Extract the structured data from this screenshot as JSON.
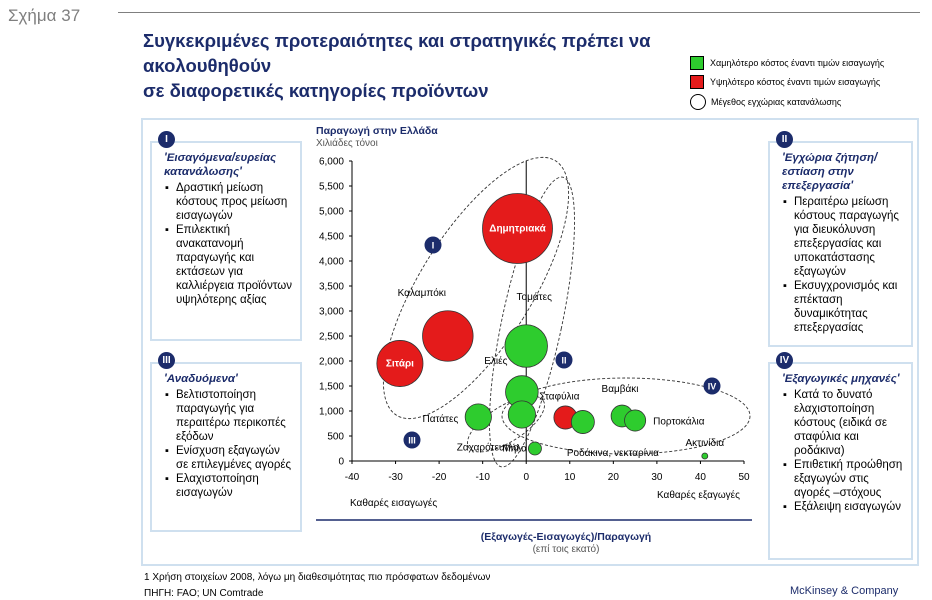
{
  "figure_label": "Σχήμα 37",
  "title_line1": "Συγκεκριμένες προτεραιότητες και στρατηγικές πρέπει να ακολουθηθούν",
  "title_line2": "σε διαφορετικές κατηγορίες προϊόντων",
  "legend": {
    "lower_cost": "Χαμηλότερο κόστος έναντι τιμών εισαγωγής",
    "higher_cost": "Υψηλότερο κόστος έναντι τιμών εισαγωγής",
    "size": "Μέγεθος εγχώριας κατανάλωσης"
  },
  "colors": {
    "green": "#2ecc2e",
    "red": "#e41b1b",
    "navy": "#1c2c6b",
    "frame": "#cfe0ef"
  },
  "panels": {
    "p1": {
      "badge": "I",
      "title": "'Εισαγόμενα/ευρείας κατανάλωσης'",
      "bullets": [
        "Δραστική μείωση κόστους προς μείωση εισαγωγών",
        "Επιλεκτική ανακατανομή παραγωγής και εκτάσεων για καλλιέργεια προϊόντων υψηλότερης αξίας"
      ]
    },
    "p2": {
      "badge": "II",
      "title": "'Εγχώρια ζήτηση/ εστίαση στην επεξεργασία'",
      "bullets": [
        "Περαιτέρω μείωση κόστους παραγωγής για διευκόλυνση επεξεργασίας και υποκατάστασης εξαγωγών",
        "Εκσυγχρονισμός και επέκταση δυναμικότητας επεξεργασίας"
      ]
    },
    "p3": {
      "badge": "III",
      "title": "'Αναδυόμενα'",
      "bullets": [
        "Βελτιστοποίηση παραγωγής για περαιτέρω περικοπές εξόδων",
        "Ενίσχυση εξαγωγών σε επιλεγμένες αγορές",
        "Ελαχιστοποίηση εισαγωγών"
      ]
    },
    "p4": {
      "badge": "IV",
      "title": "'Εξαγωγικές μηχανές'",
      "bullets": [
        "Κατά το δυνατό ελαχιστοποίηση κόστους (ειδικά σε σταφύλια και ροδάκινα)",
        "Επιθετική προώθηση εξαγωγών στις αγορές –στόχους",
        "Εξάλειψη εισαγωγών"
      ]
    }
  },
  "chart_data": {
    "type": "scatter",
    "ylabel": "Παραγωγή στην Ελλάδα",
    "ylabel_unit": "Χιλιάδες τόνοι",
    "xlabel": "(Εξαγωγές-Εισαγωγές)/Παραγωγή",
    "xlabel_unit": "(επί τοις εκατό)",
    "x_left_note": "Καθαρές εισαγωγές",
    "x_right_note": "Καθαρές εξαγωγές",
    "xlim": [
      -40,
      50
    ],
    "ylim": [
      0,
      6000
    ],
    "x_ticks": [
      -40,
      -30,
      -20,
      -10,
      0,
      10,
      20,
      30,
      40,
      50
    ],
    "y_ticks": [
      0,
      500,
      1000,
      1500,
      2000,
      2500,
      3000,
      3500,
      4000,
      4500,
      5000,
      5500,
      6000
    ],
    "y_tick_labels": [
      "0",
      "500",
      "1,000",
      "1,500",
      "2,000",
      "2,500",
      "3,000",
      "3,500",
      "4,000",
      "4,500",
      "5,000",
      "5,500",
      "6,000"
    ],
    "points": [
      {
        "label": "Δημητριακά",
        "x": -2,
        "y": 4650,
        "cost": "higher",
        "size": 4600
      },
      {
        "label": "Καλαμπόκι",
        "x": -18,
        "y": 2500,
        "cost": "higher",
        "size": 2400
      },
      {
        "label": "Σιτάρι",
        "x": -29,
        "y": 1950,
        "cost": "higher",
        "size": 2000
      },
      {
        "label": "Τομάτες",
        "x": 0,
        "y": 2300,
        "cost": "lower",
        "size": 1700
      },
      {
        "label": "Ελιές",
        "x": -1,
        "y": 1380,
        "cost": "lower",
        "size": 1000
      },
      {
        "label": "Πατάτες",
        "x": -11,
        "y": 880,
        "cost": "lower",
        "size": 650
      },
      {
        "label": "Ζαχαρότευτλα",
        "x": -1,
        "y": 930,
        "cost": "lower",
        "size": 700
      },
      {
        "label": "Σταφύλια",
        "x": 9,
        "y": 870,
        "cost": "higher",
        "size": 500
      },
      {
        "label": "Ροδάκινα, νεκταρίνια",
        "x": 13,
        "y": 780,
        "cost": "lower",
        "size": 500
      },
      {
        "label": "Βαμβάκι",
        "x": 22,
        "y": 900,
        "cost": "lower",
        "size": 450
      },
      {
        "label": "Πορτοκάλια",
        "x": 25,
        "y": 810,
        "cost": "lower",
        "size": 420
      },
      {
        "label": "Μήλα",
        "x": 2,
        "y": 250,
        "cost": "lower",
        "size": 160
      },
      {
        "label": "Ακτινίδια",
        "x": 41,
        "y": 100,
        "cost": "lower",
        "size": 15
      }
    ],
    "quadrant_labels": [
      "I",
      "II",
      "III",
      "IV"
    ]
  },
  "footnote": "1 Χρήση στοιχείων 2008, λόγω μη διαθεσιμότητας πιο πρόσφατων δεδομένων",
  "source": "ΠΗΓΗ: FAO; UN Comtrade",
  "brand": "McKinsey & Company"
}
